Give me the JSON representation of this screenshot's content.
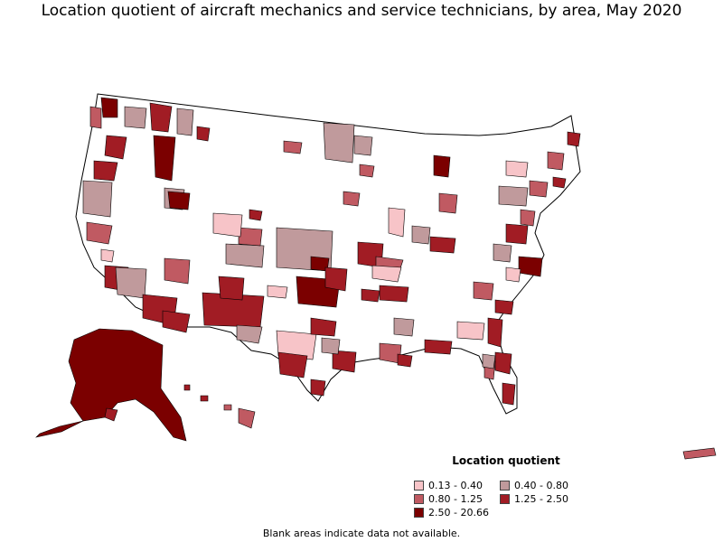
{
  "title": "Location quotient of aircraft mechanics and service technicians, by area, May 2020",
  "legend": {
    "title": "Location quotient",
    "items": [
      {
        "label": "0.13 - 0.40",
        "color": "#f7c4c8"
      },
      {
        "label": "0.40 - 0.80",
        "color": "#c09a9c"
      },
      {
        "label": "0.80 - 1.25",
        "color": "#c05a62"
      },
      {
        "label": "1.25 - 2.50",
        "color": "#a11c24"
      },
      {
        "label": "2.50 - 20.66",
        "color": "#7b0000"
      }
    ]
  },
  "note": "Blank areas indicate data not available."
}
